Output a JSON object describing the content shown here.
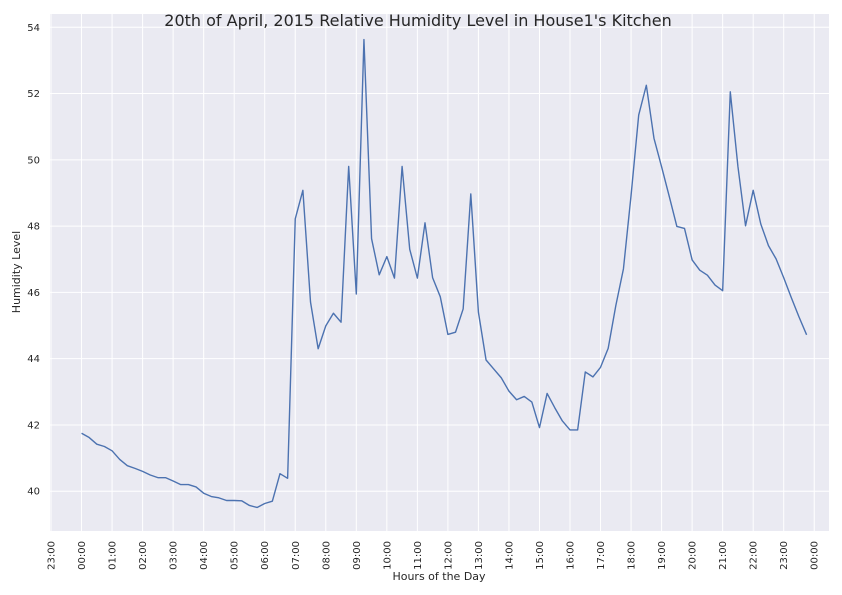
{
  "chart_data": {
    "type": "line",
    "title": "20th of April, 2015 Relative Humidity Level in House1's Kitchen",
    "xlabel": "Hours of the Day",
    "ylabel": "Humidity Level",
    "ylim": [
      38.8,
      54.4
    ],
    "yticks": [
      40,
      42,
      44,
      46,
      48,
      50,
      52,
      54
    ],
    "xlim": [
      "2015-04-19 22:58",
      "2015-04-21 00:29"
    ],
    "xticks": [
      {
        "t": "2015-04-19 23:00",
        "label": "23:00"
      },
      {
        "t": "2015-04-20 00:00",
        "label": "00:00"
      },
      {
        "t": "2015-04-20 01:00",
        "label": "01:00"
      },
      {
        "t": "2015-04-20 02:00",
        "label": "02:00"
      },
      {
        "t": "2015-04-20 03:00",
        "label": "03:00"
      },
      {
        "t": "2015-04-20 04:00",
        "label": "04:00"
      },
      {
        "t": "2015-04-20 05:00",
        "label": "05:00"
      },
      {
        "t": "2015-04-20 06:00",
        "label": "06:00"
      },
      {
        "t": "2015-04-20 07:00",
        "label": "07:00"
      },
      {
        "t": "2015-04-20 08:00",
        "label": "08:00"
      },
      {
        "t": "2015-04-20 09:00",
        "label": "09:00"
      },
      {
        "t": "2015-04-20 10:00",
        "label": "10:00"
      },
      {
        "t": "2015-04-20 11:00",
        "label": "11:00"
      },
      {
        "t": "2015-04-20 12:00",
        "label": "12:00"
      },
      {
        "t": "2015-04-20 13:00",
        "label": "13:00"
      },
      {
        "t": "2015-04-20 14:00",
        "label": "14:00"
      },
      {
        "t": "2015-04-20 15:00",
        "label": "15:00"
      },
      {
        "t": "2015-04-20 16:00",
        "label": "16:00"
      },
      {
        "t": "2015-04-20 17:00",
        "label": "17:00"
      },
      {
        "t": "2015-04-20 18:00",
        "label": "18:00"
      },
      {
        "t": "2015-04-20 19:00",
        "label": "19:00"
      },
      {
        "t": "2015-04-20 20:00",
        "label": "20:00"
      },
      {
        "t": "2015-04-20 21:00",
        "label": "21:00"
      },
      {
        "t": "2015-04-20 22:00",
        "label": "22:00"
      },
      {
        "t": "2015-04-20 23:00",
        "label": "23:00"
      },
      {
        "t": "2015-04-21 00:00",
        "label": "00:00"
      }
    ],
    "grid": true,
    "background": "#eaeaf2",
    "line_color": "#4c72b0",
    "series": [
      {
        "x": [
          "2015-04-20 00:00",
          "2015-04-20 00:15",
          "2015-04-20 00:30",
          "2015-04-20 00:45",
          "2015-04-20 01:00",
          "2015-04-20 01:15",
          "2015-04-20 01:30",
          "2015-04-20 01:45",
          "2015-04-20 02:00",
          "2015-04-20 02:15",
          "2015-04-20 02:30",
          "2015-04-20 02:45",
          "2015-04-20 03:00",
          "2015-04-20 03:15",
          "2015-04-20 03:30",
          "2015-04-20 03:45",
          "2015-04-20 04:00",
          "2015-04-20 04:15",
          "2015-04-20 04:30",
          "2015-04-20 04:45",
          "2015-04-20 05:00",
          "2015-04-20 05:15",
          "2015-04-20 05:30",
          "2015-04-20 05:45",
          "2015-04-20 06:00",
          "2015-04-20 06:15",
          "2015-04-20 06:30",
          "2015-04-20 06:45",
          "2015-04-20 07:00",
          "2015-04-20 07:15",
          "2015-04-20 07:30",
          "2015-04-20 07:45",
          "2015-04-20 08:00",
          "2015-04-20 08:15",
          "2015-04-20 08:30",
          "2015-04-20 08:45",
          "2015-04-20 09:00",
          "2015-04-20 09:15",
          "2015-04-20 09:30",
          "2015-04-20 09:45",
          "2015-04-20 10:00",
          "2015-04-20 10:15",
          "2015-04-20 10:30",
          "2015-04-20 10:45",
          "2015-04-20 11:00",
          "2015-04-20 11:15",
          "2015-04-20 11:30",
          "2015-04-20 11:45",
          "2015-04-20 12:00",
          "2015-04-20 12:15",
          "2015-04-20 12:30",
          "2015-04-20 12:45",
          "2015-04-20 13:00",
          "2015-04-20 13:15",
          "2015-04-20 13:30",
          "2015-04-20 13:45",
          "2015-04-20 14:00",
          "2015-04-20 14:15",
          "2015-04-20 14:30",
          "2015-04-20 14:45",
          "2015-04-20 15:00",
          "2015-04-20 15:15",
          "2015-04-20 15:30",
          "2015-04-20 15:45",
          "2015-04-20 16:00",
          "2015-04-20 16:15",
          "2015-04-20 16:30",
          "2015-04-20 16:45",
          "2015-04-20 17:00",
          "2015-04-20 17:15",
          "2015-04-20 17:30",
          "2015-04-20 17:45",
          "2015-04-20 18:00",
          "2015-04-20 18:15",
          "2015-04-20 18:30",
          "2015-04-20 18:45",
          "2015-04-20 19:00",
          "2015-04-20 19:15",
          "2015-04-20 19:30",
          "2015-04-20 19:45",
          "2015-04-20 20:00",
          "2015-04-20 20:15",
          "2015-04-20 20:30",
          "2015-04-20 20:45",
          "2015-04-20 21:00",
          "2015-04-20 21:15",
          "2015-04-20 21:30",
          "2015-04-20 21:45",
          "2015-04-20 22:00",
          "2015-04-20 22:15",
          "2015-04-20 22:30",
          "2015-04-20 22:45",
          "2015-04-20 23:00",
          "2015-04-20 23:15",
          "2015-04-20 23:30",
          "2015-04-20 23:45"
        ],
        "values": [
          41.75,
          41.62,
          41.42,
          41.35,
          41.22,
          40.96,
          40.77,
          40.69,
          40.6,
          40.49,
          40.41,
          40.41,
          40.31,
          40.2,
          40.2,
          40.13,
          39.94,
          39.84,
          39.8,
          39.72,
          39.72,
          39.71,
          39.57,
          39.51,
          39.63,
          39.7,
          40.53,
          40.39,
          48.22,
          49.08,
          45.71,
          44.3,
          44.99,
          45.37,
          45.1,
          49.8,
          45.95,
          53.63,
          47.62,
          46.53,
          47.08,
          46.43,
          49.8,
          47.3,
          46.43,
          48.1,
          46.44,
          45.87,
          44.73,
          44.8,
          45.5,
          48.97,
          45.4,
          43.96,
          43.69,
          43.42,
          43.02,
          42.76,
          42.86,
          42.69,
          41.92,
          42.95,
          42.52,
          42.12,
          41.85,
          41.85,
          43.6,
          43.45,
          43.74,
          44.31,
          45.6,
          46.71,
          48.93,
          51.35,
          52.25,
          50.65,
          49.79,
          48.9,
          47.99,
          47.93,
          46.98,
          46.67,
          46.52,
          46.22,
          46.05,
          52.05,
          49.8,
          48.01,
          49.08,
          48.06,
          47.41,
          47.01,
          46.44,
          45.84,
          45.26,
          44.72
        ]
      }
    ]
  }
}
